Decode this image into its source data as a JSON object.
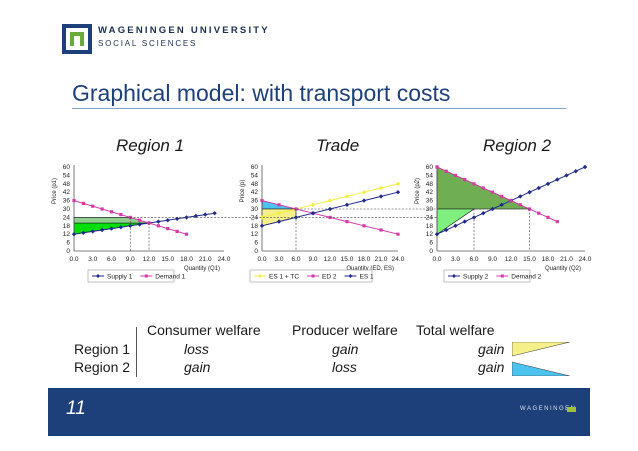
{
  "header": {
    "university": "WAGENINGEN UNIVERSITY",
    "faculty": "SOCIAL SCIENCES",
    "title": "Graphical model: with transport costs",
    "brand_color": "#1d3f7a"
  },
  "chart_data": [
    {
      "type": "line",
      "title": "Region 1",
      "xlabel": "Quantity (Q1)",
      "ylabel": "Price (p1)",
      "xlim": [
        0,
        24
      ],
      "ylim": [
        0,
        60
      ],
      "x_ticks": [
        "0.0",
        "3.0",
        "6.0",
        "9.0",
        "12.0",
        "15.0",
        "18.0",
        "21.0",
        "24.0"
      ],
      "y_ticks": [
        "0",
        "6",
        "12",
        "18",
        "24",
        "30",
        "36",
        "42",
        "48",
        "54",
        "60"
      ],
      "series": [
        {
          "name": "Supply 1",
          "color": "#1f2a8a",
          "marker": "diamond",
          "x": [
            0,
            1.5,
            3,
            4.5,
            6,
            7.5,
            9,
            10.5,
            12,
            13.5,
            15,
            16.5,
            18,
            19.5,
            21,
            22.5
          ],
          "y": [
            12,
            13,
            14,
            15,
            16,
            17,
            18,
            19,
            20,
            21,
            22,
            23,
            24,
            25,
            26,
            27
          ]
        },
        {
          "name": "Demand 1",
          "color": "#d63aa8",
          "marker": "square",
          "x": [
            0,
            1.5,
            3,
            4.5,
            6,
            7.5,
            9,
            10.5,
            12,
            13.5,
            15,
            16.5,
            18
          ],
          "y": [
            36,
            34,
            32,
            30,
            28,
            26,
            24,
            22,
            20,
            18,
            16,
            14,
            12
          ]
        }
      ],
      "legend": [
        "Supply 1",
        "Demand 1"
      ]
    },
    {
      "type": "line",
      "title": "Trade",
      "xlabel": "Quantity (ED, ES)",
      "ylabel": "Price (p)",
      "xlim": [
        0,
        24
      ],
      "ylim": [
        0,
        60
      ],
      "x_ticks": [
        "0.0",
        "3.0",
        "6.0",
        "9.0",
        "12.0",
        "15.0",
        "18.0",
        "21.0",
        "24.0"
      ],
      "y_ticks": [
        "0",
        "6",
        "12",
        "18",
        "24",
        "30",
        "36",
        "42",
        "48",
        "54",
        "60"
      ],
      "series": [
        {
          "name": "ES 1 + TC",
          "color": "#f2ee3a",
          "marker": "diamond",
          "x": [
            0,
            3,
            6,
            9,
            12,
            15,
            18,
            21,
            24
          ],
          "y": [
            24,
            27,
            30,
            33,
            36,
            39,
            42,
            45,
            48
          ]
        },
        {
          "name": "ED 2",
          "color": "#d63aa8",
          "marker": "square",
          "x": [
            0,
            3,
            6,
            9,
            12,
            15,
            18,
            21,
            24
          ],
          "y": [
            36,
            33,
            30,
            27,
            24,
            21,
            18,
            15,
            12
          ]
        },
        {
          "name": "ES 1",
          "color": "#1f2a8a",
          "marker": "diamond",
          "x": [
            0,
            3,
            6,
            9,
            12,
            15,
            18,
            21,
            24
          ],
          "y": [
            18,
            21,
            24,
            27,
            30,
            33,
            36,
            39,
            42
          ]
        }
      ],
      "legend": [
        "ES 1 + TC",
        "ED 2",
        "ES 1"
      ]
    },
    {
      "type": "line",
      "title": "Region 2",
      "xlabel": "Quantity (Q2)",
      "ylabel": "Price (p2)",
      "xlim": [
        0,
        24
      ],
      "ylim": [
        0,
        60
      ],
      "x_ticks": [
        "0.0",
        "3.0",
        "6.0",
        "9.0",
        "12.0",
        "15.0",
        "18.0",
        "21.0",
        "24.0"
      ],
      "y_ticks": [
        "0",
        "6",
        "12",
        "18",
        "24",
        "30",
        "36",
        "42",
        "48",
        "54",
        "60"
      ],
      "series": [
        {
          "name": "Supply 2",
          "color": "#1f2a8a",
          "marker": "diamond",
          "x": [
            0,
            1.5,
            3,
            4.5,
            6,
            7.5,
            9,
            10.5,
            12,
            13.5,
            15,
            16.5,
            18,
            19.5,
            21,
            22.5,
            24
          ],
          "y": [
            12,
            15,
            18,
            21,
            24,
            27,
            30,
            33,
            36,
            39,
            42,
            45,
            48,
            51,
            54,
            57,
            60
          ]
        },
        {
          "name": "Demand 2",
          "color": "#d63aa8",
          "marker": "square",
          "x": [
            0,
            1.5,
            3,
            4.5,
            6,
            7.5,
            9,
            10.5,
            12,
            13.5,
            15,
            16.5,
            18,
            19.5
          ],
          "y": [
            60,
            57,
            54,
            51,
            48,
            45,
            42,
            39,
            36,
            33,
            30,
            27,
            24,
            21
          ]
        }
      ],
      "legend": [
        "Supply 2",
        "Demand 2"
      ]
    }
  ],
  "table": {
    "headers": [
      "Consumer welfare",
      "Producer welfare",
      "Total welfare"
    ],
    "rows": [
      {
        "label": "Region 1",
        "consumer": "loss",
        "producer": "gain",
        "total": "gain",
        "swatch_color": "#f5f08a"
      },
      {
        "label": "Region 2",
        "consumer": "gain",
        "producer": "loss",
        "total": "gain",
        "swatch_color": "#4cc3ee"
      }
    ]
  },
  "footer": {
    "page_number": "11",
    "logo_text": "WAGENINGEN"
  }
}
